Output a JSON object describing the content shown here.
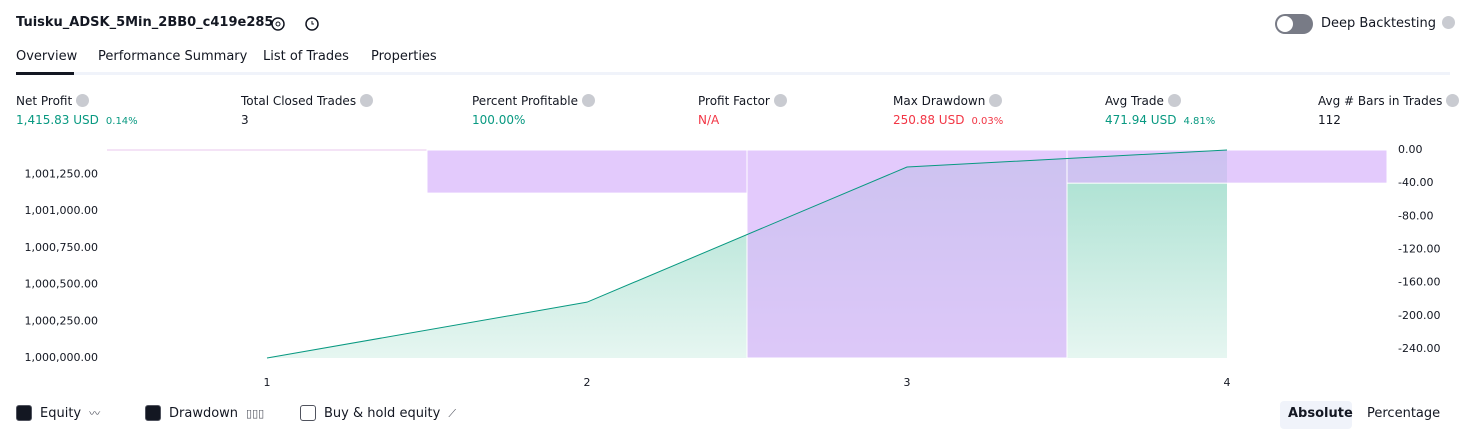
{
  "header": {
    "title": "Tuisku_ADSK_5Min_2BB0_c419e285",
    "toggle_label": "Deep Backtesting"
  },
  "tabs": [
    "Overview",
    "Performance Summary",
    "List of Trades",
    "Properties"
  ],
  "metrics": [
    {
      "label": "Net Profit",
      "value": "1,415.83 USD",
      "percent": "0.14%",
      "color": "#089981"
    },
    {
      "label": "Total Closed Trades",
      "value": "3",
      "color": "#131722"
    },
    {
      "label": "Percent Profitable",
      "value": "100.00%",
      "color": "#089981"
    },
    {
      "label": "Profit Factor",
      "value": "N/A",
      "color": "#f23645"
    },
    {
      "label": "Max Drawdown",
      "value": "250.88 USD",
      "percent": "0.03%",
      "color": "#f23645"
    },
    {
      "label": "Avg Trade",
      "value": "471.94 USD",
      "percent": "4.81%",
      "color": "#089981"
    },
    {
      "label": "Avg # Bars in Trades",
      "value": "112",
      "color": "#131722"
    }
  ],
  "chart_data": {
    "type": "equity-drawdown",
    "x": [
      1,
      2,
      3,
      4
    ],
    "xlim": [
      0.5,
      4.5
    ],
    "xticks": [
      1,
      2,
      3,
      4
    ],
    "series": [
      {
        "name": "Equity",
        "color": "#089981",
        "values": [
          1000000,
          1000380,
          1001300,
          1001415.83
        ]
      },
      {
        "name": "Drawdown",
        "color": "#d9b8fb",
        "axis": "y2",
        "values": [
          0,
          -52,
          -250.88,
          -40
        ]
      }
    ],
    "ylim": [
      1000000,
      1001415.83
    ],
    "yticks": [
      {
        "value": 1000000,
        "label": "1,000,000.00"
      },
      {
        "value": 1000250,
        "label": "1,000,250.00"
      },
      {
        "value": 1000500,
        "label": "1,000,500.00"
      },
      {
        "value": 1000750,
        "label": "1,000,750.00"
      },
      {
        "value": 1001000,
        "label": "1,001,000.00"
      },
      {
        "value": 1001250,
        "label": "1,001,250.00"
      }
    ],
    "y2lim": [
      -250.88,
      0
    ],
    "y2ticks": [
      {
        "value": 0,
        "label": "0.00"
      },
      {
        "value": -40,
        "label": "-40.00"
      },
      {
        "value": -80,
        "label": "-80.00"
      },
      {
        "value": -120,
        "label": "-120.00"
      },
      {
        "value": -160,
        "label": "-160.00"
      },
      {
        "value": -200,
        "label": "-200.00"
      },
      {
        "value": -240,
        "label": "-240.00"
      }
    ]
  },
  "legend": [
    "Equity",
    "Drawdown",
    "Buy & hold equity"
  ],
  "modes": [
    "Absolute",
    "Percentage"
  ]
}
